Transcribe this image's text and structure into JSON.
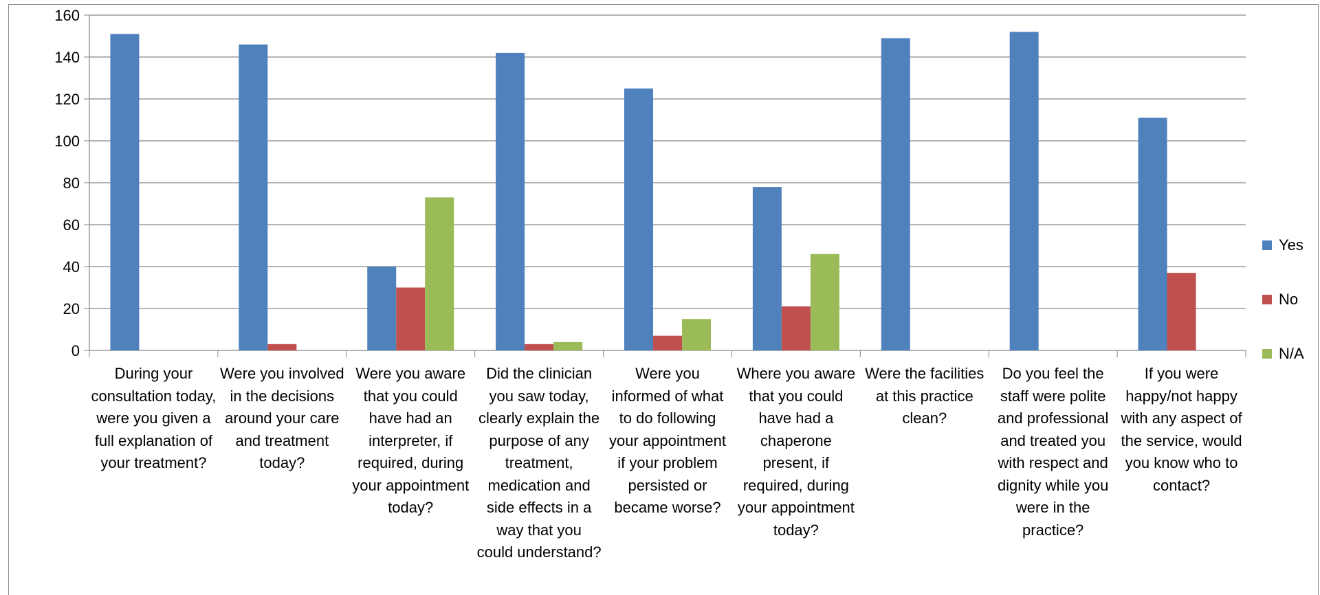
{
  "chart_data": {
    "type": "bar",
    "title": "",
    "xlabel": "",
    "ylabel": "",
    "ylim": [
      0,
      160
    ],
    "yticks": [
      0,
      20,
      40,
      60,
      80,
      100,
      120,
      140,
      160
    ],
    "grid": true,
    "legend_position": "right",
    "categories": [
      "During your consultation today, were you given a full explanation of your treatment?",
      "Were you involved in the decisions around your care and treatment today?",
      "Were you aware that you could have had an interpreter, if required, during your appointment today?",
      "Did the clinician you saw today, clearly explain the purpose of any treatment, medication and side effects in a way that you could understand?",
      "Were you informed of what to do following your appointment if your problem persisted or became worse?",
      "Where you aware that you could have had a chaperone present, if required, during your appointment today?",
      "Were the facilities at this practice clean?",
      "Do you feel the staff were polite and professional and treated you with respect and dignity while you were in the practice?",
      "If you were happy/not happy with any aspect of the service, would you know who to contact?"
    ],
    "series": [
      {
        "name": "Yes",
        "color": "#4f81bd",
        "values": [
          151,
          146,
          40,
          142,
          125,
          78,
          149,
          152,
          111
        ]
      },
      {
        "name": "No",
        "color": "#c0504d",
        "values": [
          0,
          3,
          30,
          3,
          7,
          21,
          0,
          0,
          37
        ]
      },
      {
        "name": "N/A",
        "color": "#9bbb59",
        "values": [
          0,
          0,
          73,
          4,
          15,
          46,
          0,
          0,
          0
        ]
      }
    ]
  }
}
